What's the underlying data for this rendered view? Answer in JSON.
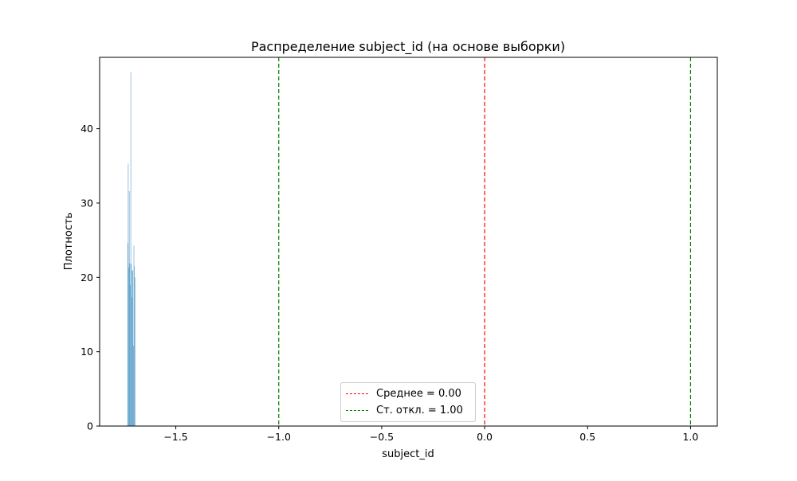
{
  "chart_data": {
    "type": "bar",
    "title": "Распределение subject_id (на основе выборки)",
    "xlabel": "subject_id",
    "ylabel": "Плотность",
    "xlim": [
      -1.87,
      1.13
    ],
    "ylim": [
      0,
      49.6
    ],
    "xticks": [
      -1.5,
      -1.0,
      -0.5,
      0.0,
      0.5,
      1.0
    ],
    "xtick_labels": [
      "−1.5",
      "−1.0",
      "−0.5",
      "0.0",
      "0.5",
      "1.0"
    ],
    "yticks": [
      0,
      10,
      20,
      30,
      40
    ],
    "ytick_labels": [
      "0",
      "10",
      "20",
      "30",
      "40"
    ],
    "bar_color": "#5b9ec9",
    "bar_width": 0.0025,
    "histogram": {
      "x": [
        -1.7335,
        -1.731,
        -1.7285,
        -1.726,
        -1.7235,
        -1.721,
        -1.7185,
        -1.716,
        -1.7135,
        -1.711,
        -1.7085,
        -1.706,
        -1.7035,
        -1.701,
        -1.6985
      ],
      "values": [
        24.6,
        35.3,
        21.3,
        31.6,
        21.9,
        19.0,
        47.6,
        21.8,
        17.3,
        21.0,
        20.9,
        10.8,
        24.3,
        21.5,
        20.0
      ]
    },
    "vlines": [
      {
        "name": "Среднее = 0.00",
        "x": 0.0,
        "color": "#ff0000",
        "style": "dashed"
      },
      {
        "name": "Ст. откл. = 1.00",
        "x": -1.0,
        "color": "#008000",
        "style": "dashed"
      },
      {
        "name": "",
        "x": 1.0,
        "color": "#008000",
        "style": "dashed"
      }
    ],
    "legend": {
      "position": "lower-center",
      "entries": [
        {
          "label": "Среднее = 0.00",
          "color": "#ff0000"
        },
        {
          "label": "Ст. откл. = 1.00",
          "color": "#008000"
        }
      ]
    },
    "grid": false
  }
}
